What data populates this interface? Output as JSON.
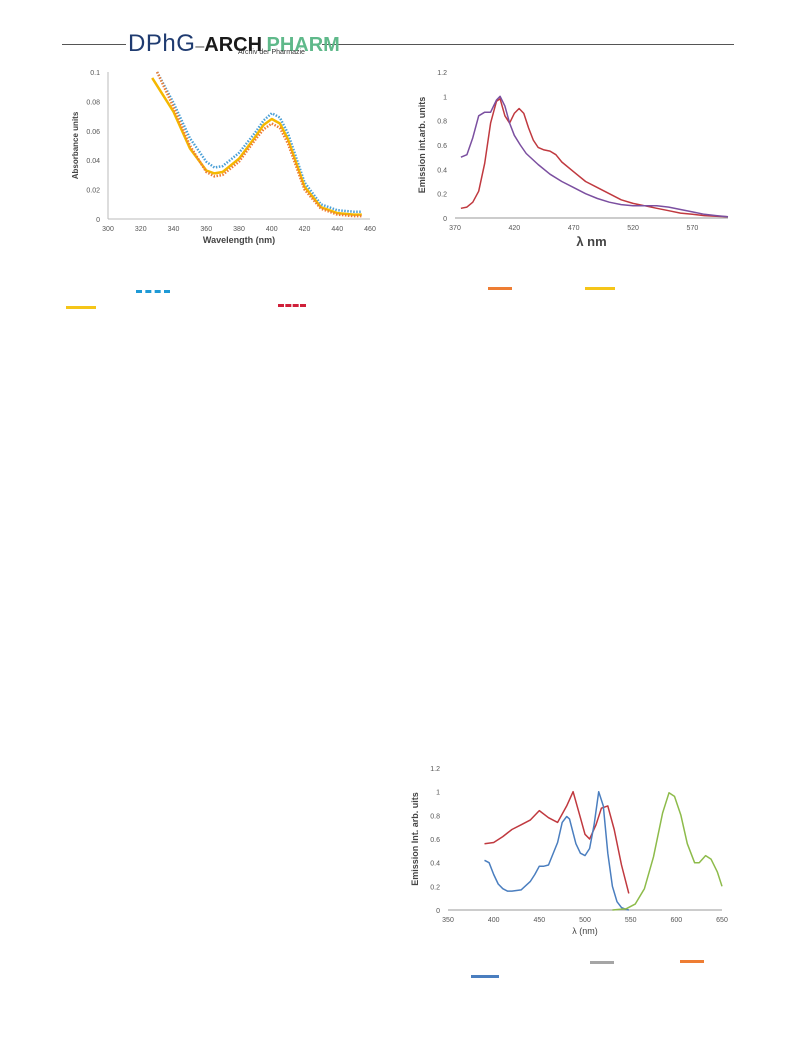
{
  "header": {
    "logo_dphg": "DPhG",
    "logo_arch": "ARCH",
    "logo_pharm": "PHARM",
    "logo_subtitle": "Archiv der Pharmazie"
  },
  "figures": {
    "fig_a_legend_colors": [
      "#1f9ad6",
      "#f5c518",
      "#d0203a"
    ],
    "fig_b_legend_colors": [
      "#ee7d33",
      "#f5c518"
    ],
    "fig_c_legend_colors": [
      "#a5a5a5",
      "#ee7d33",
      "#4a7ebf"
    ]
  },
  "chart_data": [
    {
      "type": "line",
      "xlabel": "Wavelength (nm)",
      "ylabel": "Absorbance units",
      "xlim": [
        300,
        460
      ],
      "ylim": [
        0,
        0.1
      ],
      "x_ticks": [
        "300",
        "320",
        "340",
        "360",
        "380",
        "400",
        "420",
        "440",
        "460"
      ],
      "y_ticks": [
        "0",
        "0.02",
        "0.04",
        "0.06",
        "0.08",
        "0.1"
      ],
      "grid": false,
      "series": [
        {
          "color": "#4a9fd6",
          "style": "dotted",
          "x": [
            330,
            340,
            350,
            360,
            365,
            370,
            380,
            390,
            395,
            400,
            405,
            410,
            420,
            430,
            440,
            450,
            455
          ],
          "y": [
            0.1,
            0.079,
            0.055,
            0.039,
            0.035,
            0.036,
            0.045,
            0.059,
            0.067,
            0.072,
            0.069,
            0.058,
            0.025,
            0.01,
            0.006,
            0.005,
            0.005
          ]
        },
        {
          "color": "#f5b800",
          "style": "solid",
          "x": [
            327,
            340,
            350,
            360,
            365,
            370,
            380,
            390,
            395,
            400,
            405,
            410,
            420,
            430,
            440,
            450,
            455
          ],
          "y": [
            0.096,
            0.073,
            0.048,
            0.033,
            0.031,
            0.032,
            0.041,
            0.056,
            0.064,
            0.068,
            0.065,
            0.054,
            0.022,
            0.008,
            0.004,
            0.003,
            0.003
          ]
        },
        {
          "color": "#ee7d33",
          "style": "dotted",
          "x": [
            330,
            340,
            350,
            360,
            365,
            370,
            380,
            390,
            395,
            400,
            405,
            410,
            420,
            430,
            440,
            450,
            455
          ],
          "y": [
            0.1,
            0.076,
            0.05,
            0.032,
            0.029,
            0.03,
            0.039,
            0.054,
            0.061,
            0.065,
            0.062,
            0.051,
            0.02,
            0.007,
            0.003,
            0.002,
            0.002
          ]
        }
      ]
    },
    {
      "type": "line",
      "xlabel": "λ nm",
      "ylabel": "Emission  int.arb. units",
      "xlim": [
        370,
        600
      ],
      "ylim": [
        0,
        1.2
      ],
      "x_ticks": [
        "370",
        "420",
        "470",
        "520",
        "570"
      ],
      "y_ticks": [
        "0",
        "0.2",
        "0.4",
        "0.6",
        "0.8",
        "1",
        "1.2"
      ],
      "grid": false,
      "series": [
        {
          "color": "#c0393f",
          "x": [
            375,
            380,
            385,
            390,
            395,
            400,
            405,
            408,
            412,
            416,
            420,
            424,
            428,
            432,
            436,
            440,
            445,
            450,
            455,
            460,
            470,
            480,
            490,
            500,
            510,
            520,
            530,
            540,
            550,
            560,
            570,
            580,
            590,
            600
          ],
          "y": [
            0.08,
            0.09,
            0.13,
            0.22,
            0.45,
            0.78,
            0.96,
            0.98,
            0.84,
            0.78,
            0.86,
            0.9,
            0.86,
            0.74,
            0.64,
            0.58,
            0.56,
            0.55,
            0.52,
            0.46,
            0.38,
            0.3,
            0.25,
            0.2,
            0.15,
            0.12,
            0.1,
            0.08,
            0.06,
            0.04,
            0.03,
            0.02,
            0.015,
            0.01
          ]
        },
        {
          "color": "#7b4fa0",
          "x": [
            375,
            380,
            385,
            390,
            395,
            400,
            405,
            408,
            412,
            416,
            420,
            425,
            430,
            440,
            450,
            460,
            470,
            480,
            490,
            500,
            510,
            520,
            530,
            540,
            550,
            560,
            570,
            580,
            590,
            600
          ],
          "y": [
            0.5,
            0.52,
            0.66,
            0.84,
            0.87,
            0.87,
            0.97,
            1.0,
            0.92,
            0.78,
            0.68,
            0.6,
            0.53,
            0.44,
            0.36,
            0.3,
            0.25,
            0.2,
            0.16,
            0.13,
            0.11,
            0.1,
            0.1,
            0.1,
            0.09,
            0.07,
            0.05,
            0.03,
            0.02,
            0.01
          ]
        }
      ]
    },
    {
      "type": "line",
      "xlabel": "λ (nm)",
      "ylabel": "Emission Int. arb. uits",
      "xlim": [
        350,
        650
      ],
      "ylim": [
        0,
        1.2
      ],
      "x_ticks": [
        "350",
        "400",
        "450",
        "500",
        "550",
        "600",
        "650"
      ],
      "y_ticks": [
        "0",
        "0.2",
        "0.4",
        "0.6",
        "0.8",
        "1",
        "1.2"
      ],
      "grid": false,
      "series": [
        {
          "color": "#c0393f",
          "x": [
            390,
            400,
            410,
            420,
            430,
            440,
            450,
            460,
            470,
            480,
            487,
            495,
            500,
            505,
            512,
            518,
            525,
            532,
            540,
            548
          ],
          "y": [
            0.56,
            0.57,
            0.62,
            0.68,
            0.72,
            0.76,
            0.84,
            0.78,
            0.74,
            0.88,
            1.0,
            0.78,
            0.64,
            0.6,
            0.72,
            0.86,
            0.88,
            0.68,
            0.38,
            0.14
          ]
        },
        {
          "color": "#4a7ebf",
          "x": [
            390,
            395,
            400,
            405,
            410,
            415,
            420,
            430,
            440,
            445,
            450,
            455,
            460,
            470,
            475,
            480,
            483,
            490,
            495,
            500,
            505,
            510,
            515,
            520,
            525,
            530,
            535,
            540,
            545,
            548
          ],
          "y": [
            0.42,
            0.4,
            0.3,
            0.22,
            0.18,
            0.16,
            0.16,
            0.17,
            0.24,
            0.3,
            0.37,
            0.37,
            0.38,
            0.57,
            0.74,
            0.79,
            0.77,
            0.56,
            0.48,
            0.46,
            0.52,
            0.72,
            1.0,
            0.88,
            0.48,
            0.2,
            0.07,
            0.02,
            0.005,
            0.0
          ]
        },
        {
          "color": "#8dbb4a",
          "x": [
            530,
            545,
            555,
            565,
            575,
            585,
            592,
            598,
            605,
            612,
            620,
            625,
            632,
            638,
            645,
            650
          ],
          "y": [
            0.0,
            0.01,
            0.05,
            0.18,
            0.45,
            0.82,
            0.99,
            0.96,
            0.8,
            0.56,
            0.4,
            0.4,
            0.46,
            0.43,
            0.32,
            0.2
          ]
        }
      ]
    }
  ]
}
